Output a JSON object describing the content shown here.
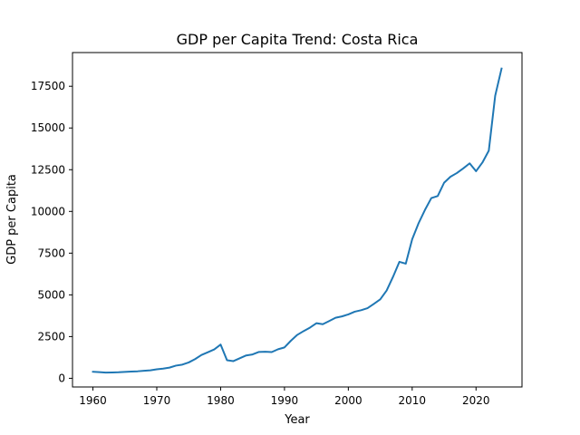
{
  "chart_data": {
    "type": "line",
    "title": "GDP per Capita Trend: Costa Rica",
    "xlabel": "Year",
    "ylabel": "GDP per Capita",
    "xlim": [
      1956.8,
      2027.2
    ],
    "ylim": [
      -520,
      19520
    ],
    "xticks": [
      1960,
      1970,
      1980,
      1990,
      2000,
      2010,
      2020
    ],
    "yticks": [
      0,
      2500,
      5000,
      7500,
      10000,
      12500,
      15000,
      17500
    ],
    "grid": false,
    "legend": "none",
    "color": "#1f77b4",
    "series": [
      {
        "x": [
          1960,
          1961,
          1962,
          1963,
          1964,
          1965,
          1966,
          1967,
          1968,
          1969,
          1970,
          1971,
          1972,
          1973,
          1974,
          1975,
          1976,
          1977,
          1978,
          1979,
          1980,
          1981,
          1982,
          1983,
          1984,
          1985,
          1986,
          1987,
          1988,
          1989,
          1990,
          1991,
          1992,
          1993,
          1994,
          1995,
          1996,
          1997,
          1998,
          1999,
          2000,
          2001,
          2002,
          2003,
          2004,
          2005,
          2006,
          2007,
          2008,
          2009,
          2010,
          2011,
          2012,
          2013,
          2014,
          2015,
          2016,
          2017,
          2018,
          2019,
          2020,
          2021,
          2022,
          2023,
          2024
        ],
        "values": [
          390,
          370,
          340,
          350,
          360,
          380,
          400,
          420,
          450,
          480,
          540,
          580,
          640,
          760,
          820,
          950,
          1150,
          1400,
          1560,
          1730,
          2020,
          1080,
          1030,
          1200,
          1370,
          1430,
          1580,
          1590,
          1570,
          1740,
          1850,
          2250,
          2600,
          2830,
          3040,
          3300,
          3240,
          3430,
          3630,
          3710,
          3830,
          3990,
          4080,
          4200,
          4460,
          4730,
          5260,
          6080,
          6980,
          6870,
          8330,
          9290,
          10090,
          10800,
          10920,
          11720,
          12080,
          12300,
          12580,
          12880,
          12410,
          12930,
          13640,
          16930,
          18560
        ]
      }
    ]
  }
}
